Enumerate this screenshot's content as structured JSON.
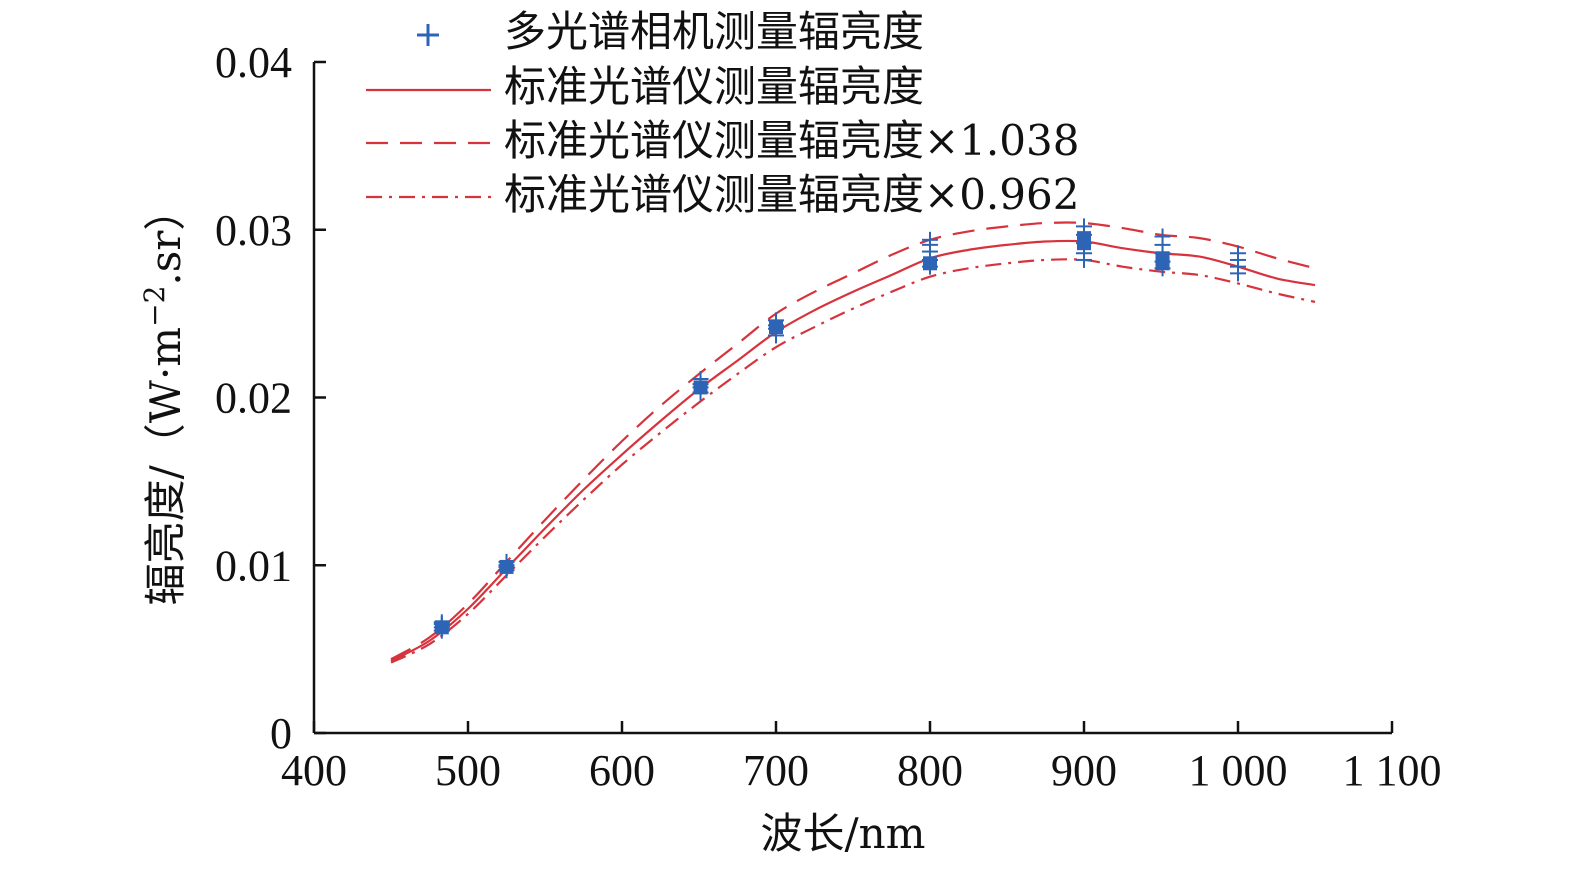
{
  "chart_data": {
    "type": "line",
    "title": "",
    "xlabel": "波长/nm",
    "ylabel_main": "辐亮度/（W·m",
    "ylabel_sup": "−2",
    "ylabel_tail": ".sr）",
    "xlim": [
      400,
      1100
    ],
    "ylim": [
      0,
      0.04
    ],
    "x_ticks": [
      400,
      500,
      600,
      700,
      800,
      900,
      1000,
      1100
    ],
    "x_tick_labels": [
      "400",
      "500",
      "600",
      "700",
      "800",
      "900",
      "1 000",
      "1 100"
    ],
    "y_ticks": [
      0,
      0.01,
      0.02,
      0.03,
      0.04
    ],
    "y_tick_labels": [
      "0",
      "0.01",
      "0.02",
      "0.03",
      "0.04"
    ],
    "grid": false,
    "legend_position": "top",
    "series": [
      {
        "name": "多光谱相机测量辐亮度",
        "kind": "scatter",
        "marker": "plus",
        "color": "#2d64b6",
        "points": [
          [
            483,
            0.0061
          ],
          [
            483,
            0.0063
          ],
          [
            483,
            0.0065
          ],
          [
            483,
            0.0066
          ],
          [
            525,
            0.0097
          ],
          [
            525,
            0.0099
          ],
          [
            525,
            0.01
          ],
          [
            525,
            0.0102
          ],
          [
            651,
            0.0203
          ],
          [
            651,
            0.0206
          ],
          [
            651,
            0.0208
          ],
          [
            651,
            0.0211
          ],
          [
            700,
            0.0237
          ],
          [
            700,
            0.0241
          ],
          [
            700,
            0.0243
          ],
          [
            700,
            0.0246
          ],
          [
            800,
            0.0278
          ],
          [
            800,
            0.0282
          ],
          [
            800,
            0.0287
          ],
          [
            800,
            0.0291
          ],
          [
            800,
            0.0294
          ],
          [
            900,
            0.0282
          ],
          [
            900,
            0.0286
          ],
          [
            900,
            0.0292
          ],
          [
            900,
            0.0297
          ],
          [
            900,
            0.0302
          ],
          [
            951,
            0.0277
          ],
          [
            951,
            0.0281
          ],
          [
            951,
            0.0286
          ],
          [
            951,
            0.0291
          ],
          [
            951,
            0.0296
          ],
          [
            1000,
            0.0274
          ],
          [
            1000,
            0.0278
          ],
          [
            1000,
            0.0282
          ],
          [
            1000,
            0.0286
          ]
        ],
        "filled_markers": [
          [
            483,
            0.0063
          ],
          [
            525,
            0.0099
          ],
          [
            651,
            0.0206
          ],
          [
            700,
            0.0242
          ],
          [
            800,
            0.028
          ],
          [
            900,
            0.0292
          ],
          [
            900,
            0.0295
          ],
          [
            951,
            0.028
          ],
          [
            951,
            0.0283
          ]
        ]
      },
      {
        "name": "标准光谱仪测量辐亮度",
        "kind": "line",
        "dash": "solid",
        "color": "#d7333c",
        "x": [
          450,
          475,
          500,
          525,
          550,
          575,
          600,
          625,
          650,
          675,
          700,
          725,
          750,
          775,
          800,
          825,
          850,
          875,
          900,
          925,
          950,
          975,
          1000,
          1025,
          1050
        ],
        "y": [
          0.0043,
          0.0055,
          0.0074,
          0.0098,
          0.0122,
          0.0145,
          0.0166,
          0.0186,
          0.0205,
          0.0222,
          0.0239,
          0.0252,
          0.0263,
          0.0273,
          0.0283,
          0.0288,
          0.0291,
          0.0293,
          0.0293,
          0.0289,
          0.0286,
          0.0284,
          0.0278,
          0.0271,
          0.0267
        ]
      },
      {
        "name": "标准光谱仪测量辐亮度×1.038",
        "kind": "line",
        "dash": "dashed",
        "color": "#d7333c",
        "x": [
          450,
          475,
          500,
          525,
          550,
          575,
          600,
          625,
          650,
          675,
          700,
          725,
          750,
          775,
          800,
          825,
          850,
          875,
          900,
          925,
          950,
          975,
          1000,
          1025,
          1050
        ],
        "y": [
          0.0044,
          0.0057,
          0.0077,
          0.0102,
          0.0127,
          0.0151,
          0.0174,
          0.0195,
          0.0214,
          0.0232,
          0.025,
          0.0263,
          0.0274,
          0.0285,
          0.0294,
          0.0299,
          0.0302,
          0.0304,
          0.0304,
          0.0301,
          0.0297,
          0.0295,
          0.029,
          0.0283,
          0.0277
        ]
      },
      {
        "name": "标准光谱仪测量辐亮度×0.962",
        "kind": "line",
        "dash": "dashdot",
        "color": "#d7333c",
        "x": [
          450,
          475,
          500,
          525,
          550,
          575,
          600,
          625,
          650,
          675,
          700,
          725,
          750,
          775,
          800,
          825,
          850,
          875,
          900,
          925,
          950,
          975,
          1000,
          1025,
          1050
        ],
        "y": [
          0.0042,
          0.0053,
          0.0071,
          0.0094,
          0.0117,
          0.0139,
          0.016,
          0.0179,
          0.0197,
          0.0214,
          0.023,
          0.0242,
          0.0253,
          0.0263,
          0.0272,
          0.0277,
          0.028,
          0.0282,
          0.0282,
          0.0278,
          0.0275,
          0.0273,
          0.0268,
          0.0262,
          0.0257
        ]
      }
    ]
  }
}
